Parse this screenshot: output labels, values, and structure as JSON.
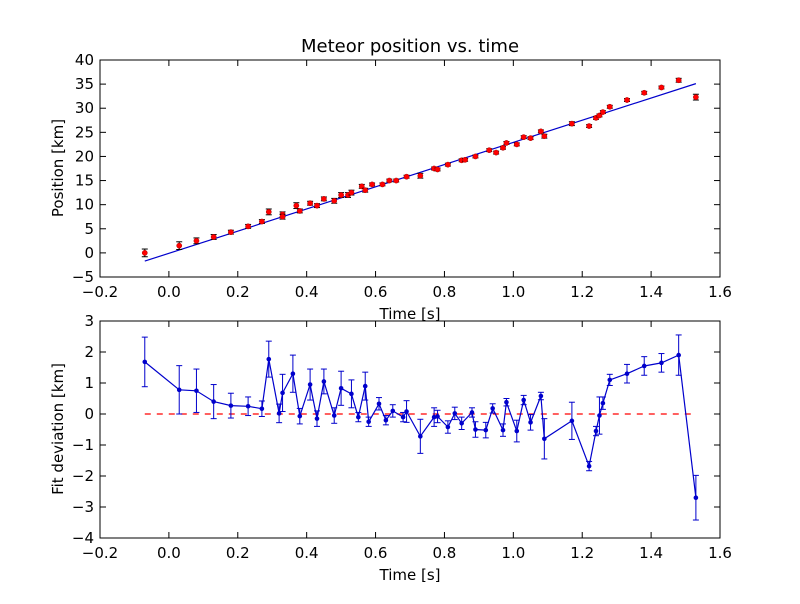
{
  "chart_data": [
    {
      "type": "scatter",
      "title": "Meteor position vs. time",
      "xlabel": "Time [s]",
      "ylabel": "Position [km]",
      "xlim": [
        -0.2,
        1.6
      ],
      "ylim": [
        -5,
        40
      ],
      "xticks": [
        "−0.2",
        "0.0",
        "0.2",
        "0.4",
        "0.6",
        "0.8",
        "1.0",
        "1.2",
        "1.4",
        "1.6"
      ],
      "yticks": [
        "−5",
        "0",
        "5",
        "10",
        "15",
        "20",
        "25",
        "30",
        "35",
        "40"
      ],
      "grid": false,
      "colors": {
        "points": "#ff0000",
        "fit": "#0000cc",
        "errorbars": "#000000"
      },
      "series": [
        {
          "kind": "data-with-errorbars",
          "x": [
            -0.07,
            0.03,
            0.08,
            0.13,
            0.18,
            0.23,
            0.27,
            0.29,
            0.33,
            0.33,
            0.37,
            0.38,
            0.41,
            0.43,
            0.45,
            0.48,
            0.5,
            0.52,
            0.53,
            0.56,
            0.57,
            0.59,
            0.62,
            0.64,
            0.66,
            0.69,
            0.73,
            0.77,
            0.78,
            0.81,
            0.85,
            0.86,
            0.89,
            0.93,
            0.95,
            0.97,
            0.98,
            1.01,
            1.03,
            1.05,
            1.08,
            1.09,
            1.17,
            1.22,
            1.24,
            1.25,
            1.26,
            1.28,
            1.33,
            1.38,
            1.43,
            1.48,
            1.53
          ],
          "y": [
            0.0,
            1.5,
            2.5,
            3.3,
            4.3,
            5.5,
            6.5,
            8.5,
            8.0,
            7.5,
            9.8,
            8.7,
            10.3,
            9.8,
            11.2,
            10.8,
            12.0,
            12.0,
            12.5,
            13.8,
            13.0,
            14.2,
            14.2,
            15.0,
            15.0,
            15.8,
            16.0,
            17.5,
            17.3,
            18.3,
            19.2,
            19.3,
            20.0,
            21.3,
            20.8,
            21.8,
            22.8,
            22.5,
            24.0,
            23.8,
            25.2,
            24.2,
            26.8,
            26.3,
            28.0,
            28.5,
            29.2,
            30.3,
            31.7,
            33.2,
            34.3,
            35.8,
            32.3
          ],
          "yerr": [
            0.8,
            0.8,
            0.6,
            0.5,
            0.4,
            0.4,
            0.4,
            0.6,
            0.5,
            0.5,
            0.6,
            0.4,
            0.4,
            0.4,
            0.4,
            0.5,
            0.5,
            0.5,
            0.5,
            0.4,
            0.4,
            0.3,
            0.3,
            0.3,
            0.3,
            0.3,
            0.5,
            0.3,
            0.3,
            0.3,
            0.3,
            0.3,
            0.3,
            0.3,
            0.3,
            0.3,
            0.3,
            0.3,
            0.3,
            0.3,
            0.3,
            0.4,
            0.4,
            0.3,
            0.3,
            0.3,
            0.3,
            0.3,
            0.3,
            0.3,
            0.3,
            0.4,
            0.6
          ]
        },
        {
          "kind": "fit-line",
          "x": [
            -0.07,
            1.53
          ],
          "y": [
            -1.7,
            35.1
          ]
        }
      ]
    },
    {
      "type": "line",
      "xlabel": "Time [s]",
      "ylabel": "Fit deviation [km]",
      "xlim": [
        -0.2,
        1.6
      ],
      "ylim": [
        -4,
        3
      ],
      "xticks": [
        "−0.2",
        "0.0",
        "0.2",
        "0.4",
        "0.6",
        "0.8",
        "1.0",
        "1.2",
        "1.4",
        "1.6"
      ],
      "yticks": [
        "−4",
        "−3",
        "−2",
        "−1",
        "0",
        "1",
        "2",
        "3"
      ],
      "grid": false,
      "colors": {
        "line": "#0000cc",
        "zero_line": "#ff0000"
      },
      "series": [
        {
          "kind": "residuals-with-errorbars",
          "x": [
            -0.07,
            0.03,
            0.08,
            0.13,
            0.18,
            0.23,
            0.27,
            0.29,
            0.32,
            0.33,
            0.36,
            0.38,
            0.41,
            0.43,
            0.45,
            0.48,
            0.5,
            0.53,
            0.55,
            0.57,
            0.58,
            0.61,
            0.63,
            0.65,
            0.68,
            0.69,
            0.73,
            0.77,
            0.78,
            0.81,
            0.83,
            0.85,
            0.88,
            0.89,
            0.92,
            0.94,
            0.97,
            0.98,
            1.01,
            1.03,
            1.05,
            1.08,
            1.09,
            1.17,
            1.22,
            1.24,
            1.25,
            1.26,
            1.28,
            1.33,
            1.38,
            1.43,
            1.48,
            1.53
          ],
          "y": [
            1.68,
            0.78,
            0.75,
            0.4,
            0.27,
            0.25,
            0.17,
            1.77,
            0.02,
            0.68,
            1.3,
            -0.07,
            0.95,
            -0.15,
            1.05,
            -0.05,
            0.83,
            0.65,
            -0.1,
            0.9,
            -0.25,
            0.33,
            -0.2,
            0.1,
            -0.1,
            0.08,
            -0.72,
            -0.1,
            -0.08,
            -0.42,
            0.02,
            -0.3,
            0.05,
            -0.5,
            -0.52,
            0.18,
            -0.52,
            0.38,
            -0.55,
            0.45,
            -0.27,
            0.58,
            -0.8,
            -0.22,
            -1.68,
            -0.55,
            -0.05,
            0.35,
            1.1,
            1.3,
            1.55,
            1.65,
            1.9,
            -2.7
          ],
          "yerr": [
            0.8,
            0.78,
            0.7,
            0.55,
            0.4,
            0.3,
            0.25,
            0.58,
            0.3,
            0.6,
            0.6,
            0.25,
            0.5,
            0.25,
            0.4,
            0.25,
            0.55,
            0.45,
            0.15,
            0.45,
            0.15,
            0.2,
            0.15,
            0.2,
            0.15,
            0.35,
            0.55,
            0.3,
            0.2,
            0.2,
            0.2,
            0.2,
            0.15,
            0.25,
            0.25,
            0.15,
            0.2,
            0.12,
            0.35,
            0.15,
            0.25,
            0.12,
            0.65,
            0.6,
            0.15,
            0.15,
            0.6,
            0.2,
            0.18,
            0.3,
            0.3,
            0.3,
            0.65,
            0.72
          ]
        },
        {
          "kind": "zero-reference",
          "x": [
            -0.07,
            1.53
          ],
          "y": [
            0,
            0
          ],
          "style": "dashed"
        }
      ]
    }
  ]
}
